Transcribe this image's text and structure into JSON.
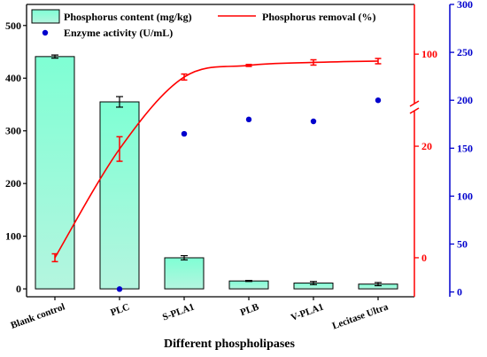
{
  "chart_data": {
    "type": "bar+line+scatter",
    "categories": [
      "Blank control",
      "PLC",
      "S-PLA1",
      "PLB",
      "V-PLA1",
      "Lecitase Ultra"
    ],
    "xlabel": "Different phospholipases",
    "colors": {
      "bar_top": "#7fffd4",
      "bar_bottom": "#b4f5df",
      "line": "#ff0000",
      "scatter": "#0000cd",
      "right1_axis": "#ff0000",
      "right2_axis": "#0000cd"
    },
    "series": [
      {
        "name": "Phosphorus content (mg/kg)",
        "type": "bar",
        "axis": "left",
        "values": [
          441,
          355,
          59,
          15,
          11,
          9
        ],
        "errors": [
          3,
          10,
          4,
          1,
          3,
          3
        ]
      },
      {
        "name": "Phosphorus removal (%)",
        "type": "line",
        "axis": "right1",
        "values": [
          0,
          19.5,
          93.1,
          96.6,
          97.5,
          97.9
        ],
        "errors": [
          0.7,
          2.2,
          0.9,
          0.3,
          0.8,
          0.8
        ]
      },
      {
        "name": "Enzyme activity (U/mL)",
        "type": "scatter",
        "axis": "right2",
        "values": [
          null,
          3,
          165,
          180,
          178,
          200
        ]
      }
    ],
    "axes": {
      "left": {
        "ylim": [
          -15,
          540
        ],
        "ticks": [
          "0",
          "100",
          "200",
          "300",
          "400",
          "500"
        ]
      },
      "right1": {
        "ticks": [
          "0",
          "20",
          "100"
        ],
        "axis_break": true,
        "lower_range": [
          -7,
          27
        ],
        "upper_range": [
          84,
          115
        ]
      },
      "right2": {
        "ylim": [
          -5,
          300
        ],
        "ticks": [
          "0",
          "50",
          "100",
          "150",
          "200",
          "250",
          "300"
        ]
      }
    }
  }
}
